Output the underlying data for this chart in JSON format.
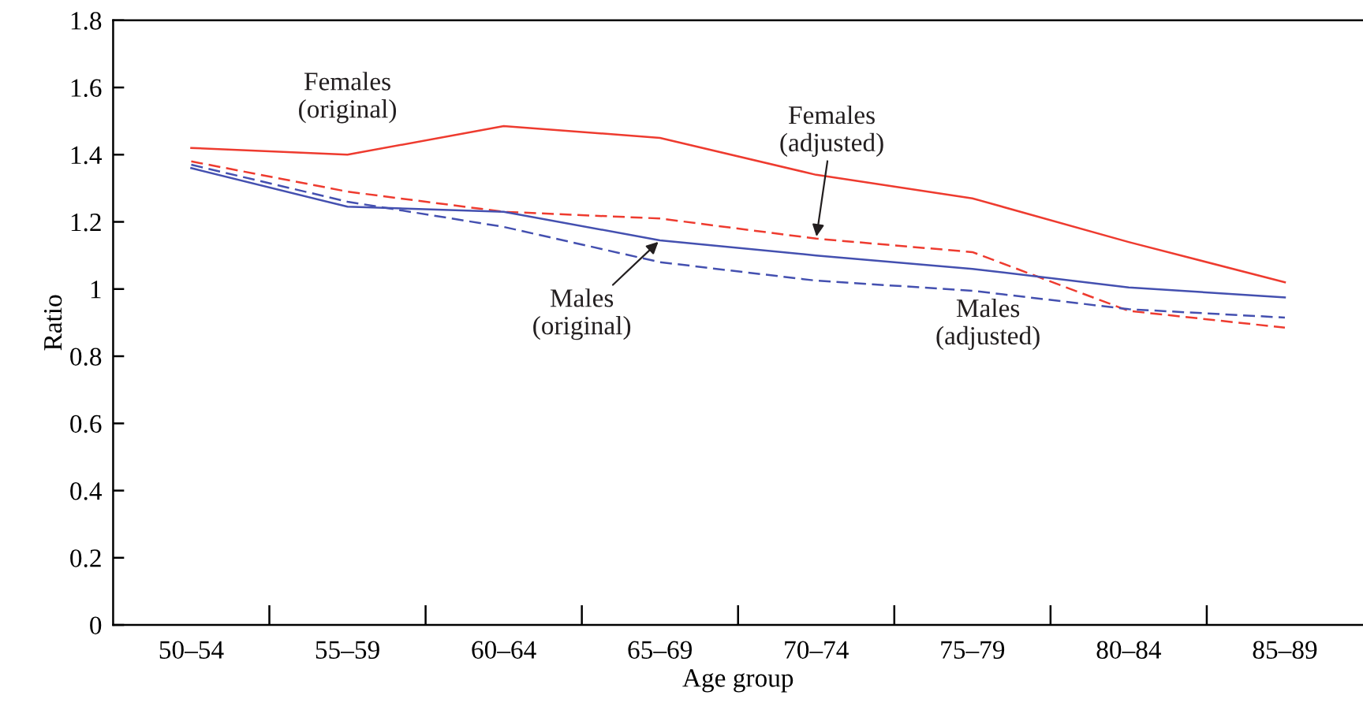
{
  "chart_data": {
    "type": "line",
    "xlabel": "Age group",
    "ylabel": "Ratio",
    "categories": [
      "50–54",
      "55–59",
      "60–64",
      "65–69",
      "70–74",
      "75–79",
      "80–84",
      "85–89"
    ],
    "series": [
      {
        "color": "#ee3b2f",
        "line_style": "solid",
        "values": [
          1.42,
          1.4,
          1.485,
          1.45,
          1.34,
          1.27,
          1.14,
          1.02
        ]
      },
      {
        "color": "#ee3b2f",
        "line_style": "dashed",
        "values": [
          1.38,
          1.29,
          1.23,
          1.21,
          1.15,
          1.11,
          0.935,
          0.885
        ]
      },
      {
        "color": "#4450b0",
        "line_style": "solid",
        "values": [
          1.36,
          1.245,
          1.23,
          1.145,
          1.1,
          1.06,
          1.005,
          0.975
        ]
      },
      {
        "color": "#4450b0",
        "line_style": "dashed",
        "values": [
          1.37,
          1.26,
          1.185,
          1.08,
          1.025,
          0.995,
          0.94,
          0.915
        ]
      }
    ],
    "annotations": [
      {
        "text": "Females\n(original)",
        "x": "55–59",
        "y": 1.4
      },
      {
        "text": "Females\n(adjusted)",
        "x": "70–74",
        "y": 1.15
      },
      {
        "text": "Males\n(original)",
        "x": "65–69",
        "y": 1.145
      },
      {
        "text": "Males\n(adjusted)",
        "x": "75–79",
        "y": 0.995
      }
    ],
    "ylim": [
      0,
      1.8
    ],
    "yticks": [
      0,
      0.2,
      0.4,
      0.6,
      0.8,
      1,
      1.2,
      1.4,
      1.6,
      1.8
    ],
    "grid": false,
    "legend": false,
    "marker": "none"
  }
}
